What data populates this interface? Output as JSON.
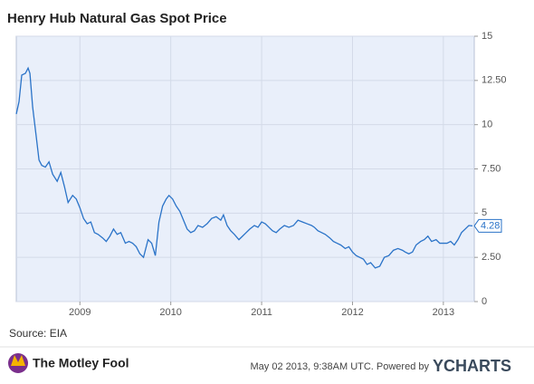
{
  "chart_data": {
    "type": "line",
    "title": "Henry Hub Natural Gas Spot Price",
    "source": "Source: EIA",
    "brand": "The Motley Fool",
    "footer": "May 02 2013, 9:38AM UTC.  Powered by",
    "footer_logo": "YCHARTS",
    "color": "#2a73c8",
    "grid": true,
    "xlim": [
      2008.3,
      2013.34
    ],
    "xticks": [
      2009,
      2010,
      2011,
      2012,
      2013
    ],
    "ylim": [
      0,
      15
    ],
    "yticks": [
      0,
      {
        "value": 2.5,
        "label": "2.50"
      },
      5,
      {
        "value": 7.5,
        "label": "7.50"
      },
      10,
      {
        "value": 12.5,
        "label": "12.50"
      },
      15
    ],
    "x": [
      2008.3,
      2008.33,
      2008.36,
      2008.4,
      2008.43,
      2008.45,
      2008.48,
      2008.52,
      2008.55,
      2008.58,
      2008.62,
      2008.66,
      2008.7,
      2008.75,
      2008.79,
      2008.83,
      2008.87,
      2008.92,
      2008.96,
      2009.0,
      2009.04,
      2009.08,
      2009.12,
      2009.16,
      2009.2,
      2009.25,
      2009.29,
      2009.33,
      2009.37,
      2009.41,
      2009.45,
      2009.5,
      2009.54,
      2009.58,
      2009.62,
      2009.66,
      2009.7,
      2009.75,
      2009.79,
      2009.83,
      2009.87,
      2009.91,
      2009.95,
      2009.98,
      2010.02,
      2010.06,
      2010.1,
      2010.14,
      2010.18,
      2010.22,
      2010.26,
      2010.3,
      2010.35,
      2010.4,
      2010.45,
      2010.5,
      2010.55,
      2010.58,
      2010.62,
      2010.66,
      2010.7,
      2010.75,
      2010.79,
      2010.83,
      2010.87,
      2010.92,
      2010.96,
      2011.0,
      2011.04,
      2011.08,
      2011.12,
      2011.16,
      2011.2,
      2011.25,
      2011.3,
      2011.35,
      2011.4,
      2011.45,
      2011.5,
      2011.55,
      2011.58,
      2011.62,
      2011.66,
      2011.7,
      2011.75,
      2011.79,
      2011.83,
      2011.87,
      2011.92,
      2011.96,
      2012.0,
      2012.04,
      2012.08,
      2012.12,
      2012.16,
      2012.2,
      2012.25,
      2012.3,
      2012.35,
      2012.4,
      2012.45,
      2012.5,
      2012.55,
      2012.58,
      2012.62,
      2012.66,
      2012.7,
      2012.75,
      2012.79,
      2012.83,
      2012.87,
      2012.92,
      2012.96,
      2013.0,
      2013.04,
      2013.08,
      2013.12,
      2013.16,
      2013.2,
      2013.24,
      2013.28,
      2013.32
    ],
    "values": [
      10.6,
      11.3,
      12.8,
      12.9,
      13.2,
      12.9,
      11.0,
      9.3,
      8.0,
      7.7,
      7.6,
      7.9,
      7.2,
      6.8,
      7.3,
      6.5,
      5.6,
      6.0,
      5.8,
      5.3,
      4.7,
      4.4,
      4.5,
      3.9,
      3.8,
      3.6,
      3.4,
      3.7,
      4.1,
      3.8,
      3.9,
      3.3,
      3.4,
      3.3,
      3.1,
      2.7,
      2.5,
      3.5,
      3.3,
      2.6,
      4.5,
      5.4,
      5.8,
      6.0,
      5.8,
      5.4,
      5.1,
      4.6,
      4.1,
      3.9,
      4.0,
      4.3,
      4.2,
      4.4,
      4.7,
      4.8,
      4.6,
      4.9,
      4.3,
      4.0,
      3.8,
      3.5,
      3.7,
      3.9,
      4.1,
      4.3,
      4.2,
      4.5,
      4.4,
      4.2,
      4.0,
      3.9,
      4.1,
      4.3,
      4.2,
      4.3,
      4.6,
      4.5,
      4.4,
      4.3,
      4.2,
      4.0,
      3.9,
      3.8,
      3.6,
      3.4,
      3.3,
      3.2,
      3.0,
      3.1,
      2.8,
      2.6,
      2.5,
      2.4,
      2.1,
      2.2,
      1.9,
      2.0,
      2.5,
      2.6,
      2.9,
      3.0,
      2.9,
      2.8,
      2.7,
      2.8,
      3.2,
      3.4,
      3.5,
      3.7,
      3.4,
      3.5,
      3.3,
      3.3,
      3.3,
      3.4,
      3.2,
      3.5,
      3.9,
      4.1,
      4.3,
      4.28
    ]
  }
}
